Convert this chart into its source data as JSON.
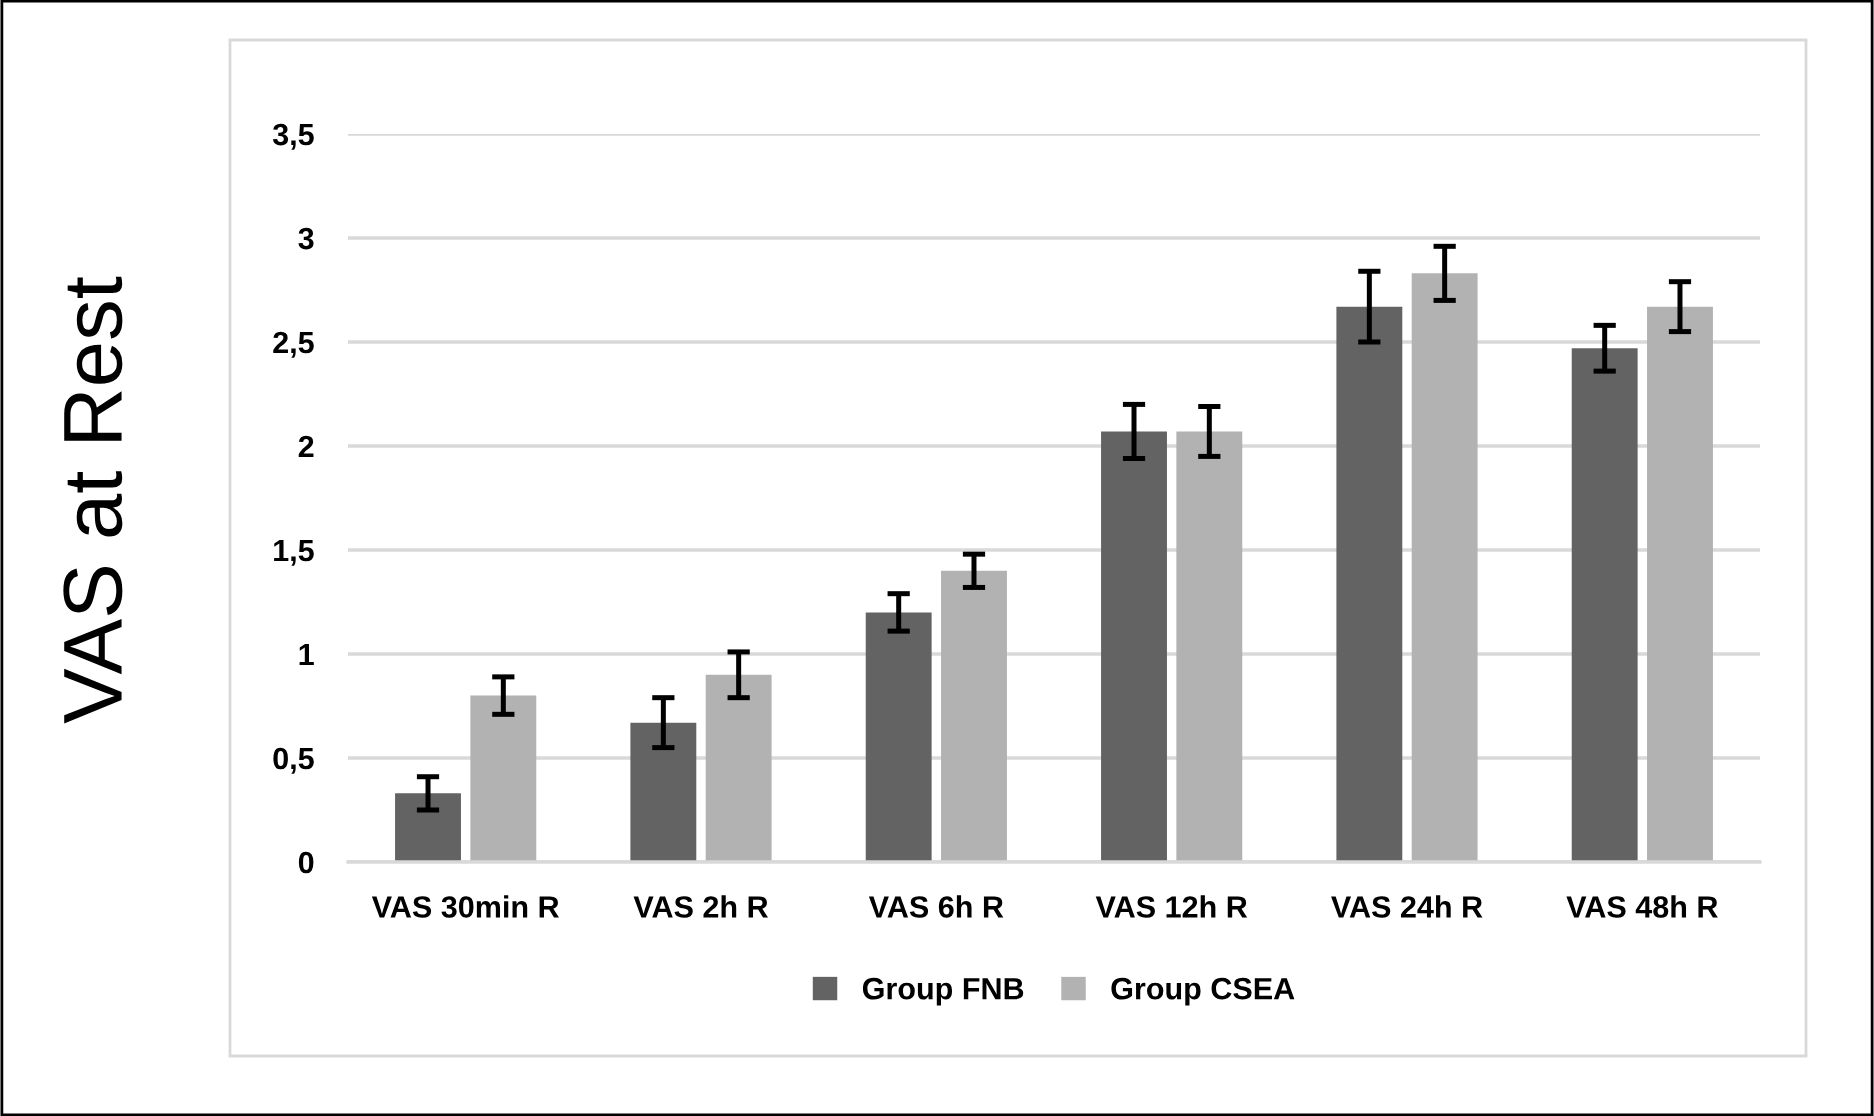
{
  "chart_data": {
    "type": "bar",
    "ylabel": "VAS at Rest",
    "categories": [
      "VAS 30min R",
      "VAS 2h R",
      "VAS 6h R",
      "VAS 12h R",
      "VAS 24h R",
      "VAS 48h R"
    ],
    "series": [
      {
        "name": "Group FNB",
        "color": "#636363",
        "values": [
          0.33,
          0.67,
          1.2,
          2.07,
          2.67,
          2.47
        ],
        "errors": [
          0.08,
          0.12,
          0.09,
          0.13,
          0.17,
          0.11
        ]
      },
      {
        "name": "Group CSEA",
        "color": "#b2b2b2",
        "values": [
          0.8,
          0.9,
          1.4,
          2.07,
          2.83,
          2.67
        ],
        "errors": [
          0.09,
          0.11,
          0.08,
          0.12,
          0.13,
          0.12
        ]
      }
    ],
    "ylim": [
      0,
      3.5
    ],
    "yticks": [
      0,
      {
        "value": 0.5,
        "label": "0,5"
      },
      1,
      {
        "value": 1.5,
        "label": "1,5"
      },
      2,
      {
        "value": 2.5,
        "label": "2,5"
      },
      3,
      {
        "value": 3.5,
        "label": "3,5"
      }
    ],
    "grid": "y",
    "legend": "bottom"
  }
}
